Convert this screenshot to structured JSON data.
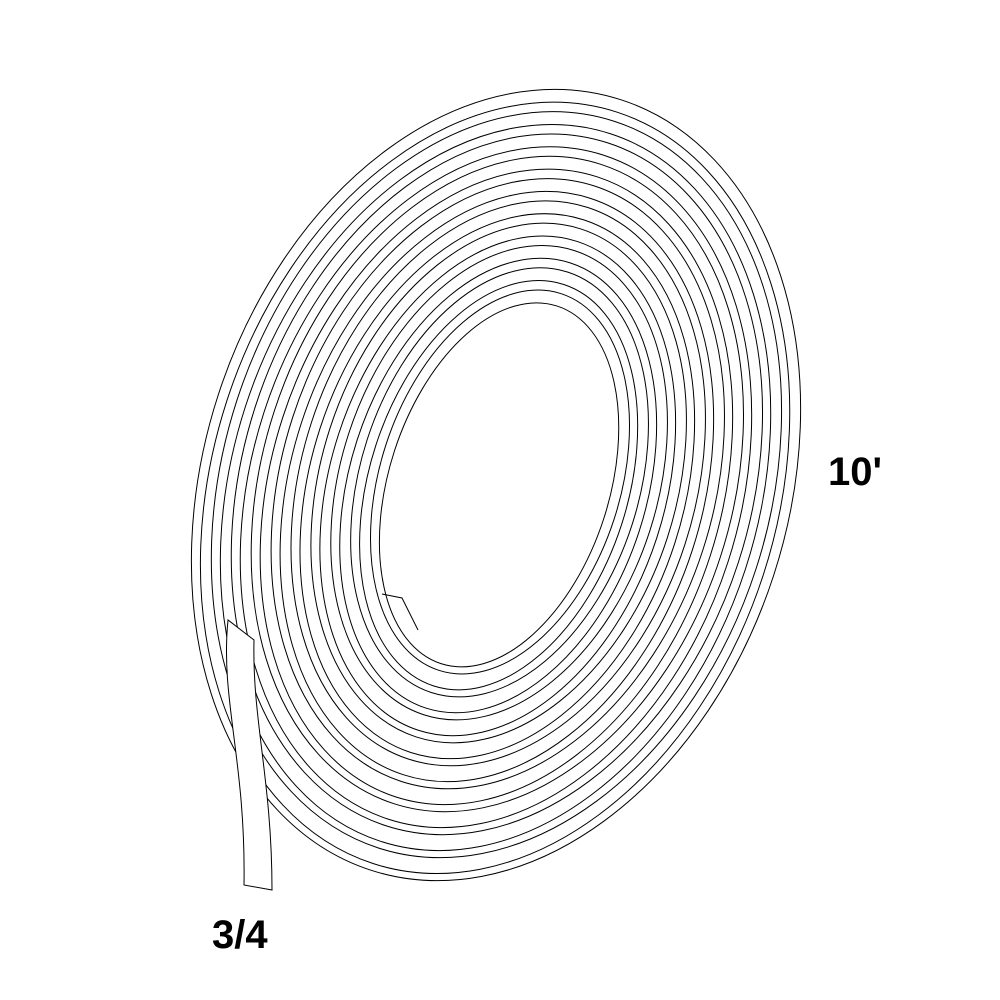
{
  "diagram": {
    "length_label": "10'",
    "width_label": "3/4",
    "turns": 10,
    "line_color": "#000000",
    "background_color": "#ffffff"
  }
}
